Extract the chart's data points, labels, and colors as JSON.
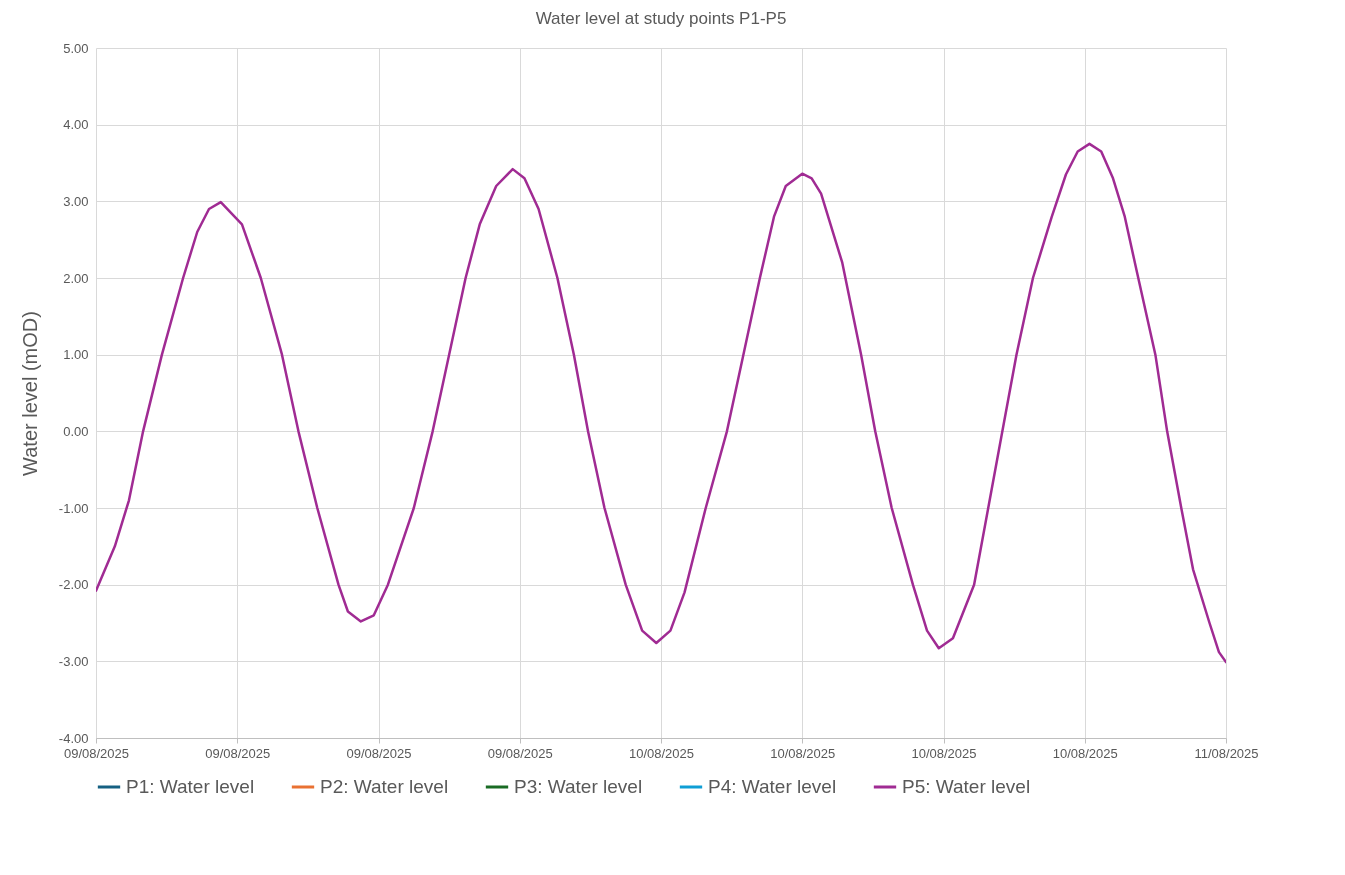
{
  "chart_data": {
    "type": "line",
    "title": "Water level at study points P1-P5",
    "ylabel": "Water level (mOD)",
    "x": [
      "2025-08-09T00:00",
      "2025-08-09T00:48",
      "2025-08-09T01:24",
      "2025-08-09T02:00",
      "2025-08-09T02:48",
      "2025-08-09T03:42",
      "2025-08-09T04:18",
      "2025-08-09T04:48",
      "2025-08-09T05:18",
      "2025-08-09T06:12",
      "2025-08-09T07:00",
      "2025-08-09T07:54",
      "2025-08-09T08:36",
      "2025-08-09T09:24",
      "2025-08-09T10:18",
      "2025-08-09T10:42",
      "2025-08-09T11:15",
      "2025-08-09T11:48",
      "2025-08-09T12:24",
      "2025-08-09T13:30",
      "2025-08-09T14:18",
      "2025-08-09T15:00",
      "2025-08-09T15:42",
      "2025-08-09T16:18",
      "2025-08-09T17:00",
      "2025-08-09T17:42",
      "2025-08-09T18:12",
      "2025-08-09T18:48",
      "2025-08-09T19:36",
      "2025-08-09T20:18",
      "2025-08-09T20:54",
      "2025-08-09T21:36",
      "2025-08-09T22:30",
      "2025-08-09T23:12",
      "2025-08-09T23:48",
      "2025-08-10T00:24",
      "2025-08-10T01:00",
      "2025-08-10T01:54",
      "2025-08-10T02:48",
      "2025-08-10T03:30",
      "2025-08-10T04:12",
      "2025-08-10T04:48",
      "2025-08-10T05:18",
      "2025-08-10T06:00",
      "2025-08-10T06:24",
      "2025-08-10T06:48",
      "2025-08-10T07:42",
      "2025-08-10T08:30",
      "2025-08-10T09:06",
      "2025-08-10T09:48",
      "2025-08-10T10:42",
      "2025-08-10T11:18",
      "2025-08-10T11:48",
      "2025-08-10T12:24",
      "2025-08-10T13:18",
      "2025-08-10T13:54",
      "2025-08-10T14:30",
      "2025-08-10T15:06",
      "2025-08-10T15:48",
      "2025-08-10T16:36",
      "2025-08-10T17:12",
      "2025-08-10T17:42",
      "2025-08-10T18:12",
      "2025-08-10T18:42",
      "2025-08-10T19:12",
      "2025-08-10T19:42",
      "2025-08-10T20:12",
      "2025-08-10T21:00",
      "2025-08-10T21:30",
      "2025-08-10T22:06",
      "2025-08-10T22:36",
      "2025-08-10T23:18",
      "2025-08-10T23:42",
      "2025-08-11T00:00"
    ],
    "series": [
      {
        "name": "P1: Water level",
        "color": "#156082",
        "values": [
          null,
          null,
          null,
          null,
          null,
          null,
          null,
          null,
          null,
          null,
          null,
          null,
          null,
          null,
          null,
          null,
          null,
          null,
          null,
          null,
          null,
          null,
          null,
          null,
          null,
          null,
          null,
          null,
          null,
          null,
          null,
          null,
          null,
          null,
          null,
          null,
          null,
          null,
          null,
          null,
          null,
          null,
          null,
          null,
          null,
          null,
          null,
          null,
          null,
          null,
          null,
          null,
          null,
          null,
          null,
          null,
          null,
          null,
          null,
          null,
          null,
          null,
          null,
          null,
          null,
          null,
          null,
          null,
          null,
          null,
          null,
          null,
          null,
          null
        ]
      },
      {
        "name": "P2: Water level",
        "color": "#e97132",
        "values": [
          null,
          null,
          null,
          null,
          null,
          null,
          null,
          null,
          null,
          null,
          null,
          null,
          null,
          null,
          null,
          null,
          null,
          null,
          null,
          null,
          null,
          null,
          null,
          null,
          null,
          null,
          null,
          null,
          null,
          null,
          null,
          null,
          null,
          null,
          null,
          null,
          null,
          null,
          null,
          null,
          null,
          null,
          null,
          null,
          null,
          null,
          null,
          null,
          null,
          null,
          null,
          null,
          null,
          null,
          null,
          null,
          null,
          null,
          null,
          null,
          null,
          null,
          null,
          null,
          null,
          null,
          null,
          null,
          null,
          null,
          null,
          null,
          null,
          null
        ]
      },
      {
        "name": "P3: Water level",
        "color": "#196b24",
        "values": [
          null,
          null,
          null,
          null,
          null,
          null,
          null,
          null,
          null,
          null,
          null,
          null,
          null,
          null,
          null,
          null,
          null,
          null,
          null,
          null,
          null,
          null,
          null,
          null,
          null,
          null,
          null,
          null,
          null,
          null,
          null,
          null,
          null,
          null,
          null,
          null,
          null,
          null,
          null,
          null,
          null,
          null,
          null,
          null,
          null,
          null,
          null,
          null,
          null,
          null,
          null,
          null,
          null,
          null,
          null,
          null,
          null,
          null,
          null,
          null,
          null,
          null,
          null,
          null,
          null,
          null,
          null,
          null,
          null,
          null,
          null,
          null,
          null,
          null
        ]
      },
      {
        "name": "P4: Water level",
        "color": "#0f9ed5",
        "values": [
          null,
          null,
          null,
          null,
          null,
          null,
          null,
          null,
          null,
          null,
          null,
          null,
          null,
          null,
          null,
          null,
          null,
          null,
          null,
          null,
          null,
          null,
          null,
          null,
          null,
          null,
          null,
          null,
          null,
          null,
          null,
          null,
          null,
          null,
          null,
          null,
          null,
          null,
          null,
          null,
          null,
          null,
          null,
          null,
          null,
          null,
          null,
          null,
          null,
          null,
          null,
          null,
          null,
          null,
          null,
          null,
          null,
          null,
          null,
          null,
          null,
          null,
          null,
          null,
          null,
          null,
          null,
          null,
          null,
          null,
          null,
          null,
          null,
          null
        ]
      },
      {
        "name": "P5: Water level",
        "color": "#a02b93",
        "values": [
          -2.08,
          -1.5,
          -0.9,
          0,
          1.0,
          2.0,
          2.6,
          2.9,
          2.99,
          2.7,
          2.0,
          1.0,
          0,
          -1.0,
          -2.0,
          -2.35,
          -2.48,
          -2.4,
          -2.0,
          -1.0,
          0,
          1.0,
          2.0,
          2.7,
          3.2,
          3.42,
          3.3,
          2.9,
          2.0,
          1.0,
          0,
          -1.0,
          -2.0,
          -2.6,
          -2.76,
          -2.6,
          -2.1,
          -1.0,
          0,
          1.0,
          2.0,
          2.8,
          3.2,
          3.36,
          3.3,
          3.1,
          2.2,
          1.0,
          0,
          -1.0,
          -2.0,
          -2.6,
          -2.83,
          -2.7,
          -2.0,
          -1.0,
          0,
          1.0,
          2.0,
          2.8,
          3.35,
          3.65,
          3.75,
          3.65,
          3.3,
          2.8,
          2.1,
          1.0,
          0,
          -1.0,
          -1.8,
          -2.5,
          -2.88,
          -3.01
        ]
      }
    ],
    "xlim": [
      "2025-08-09T00:00",
      "2025-08-11T00:00"
    ],
    "xticks": [
      {
        "value": "2025-08-09T00:00",
        "label": "09/08/2025"
      },
      {
        "value": "2025-08-09T06:00",
        "label": "09/08/2025"
      },
      {
        "value": "2025-08-09T12:00",
        "label": "09/08/2025"
      },
      {
        "value": "2025-08-09T18:00",
        "label": "09/08/2025"
      },
      {
        "value": "2025-08-10T00:00",
        "label": "10/08/2025"
      },
      {
        "value": "2025-08-10T06:00",
        "label": "10/08/2025"
      },
      {
        "value": "2025-08-10T12:00",
        "label": "10/08/2025"
      },
      {
        "value": "2025-08-10T18:00",
        "label": "10/08/2025"
      },
      {
        "value": "2025-08-11T00:00",
        "label": "11/08/2025"
      }
    ],
    "ylim": [
      -4,
      5
    ],
    "yticks": [
      {
        "value": -4,
        "label": "-4.00"
      },
      {
        "value": -3,
        "label": "-3.00"
      },
      {
        "value": -2,
        "label": "-2.00"
      },
      {
        "value": -1,
        "label": "-1.00"
      },
      {
        "value": 0,
        "label": "0.00"
      },
      {
        "value": 1,
        "label": "1.00"
      },
      {
        "value": 2,
        "label": "2.00"
      },
      {
        "value": 3,
        "label": "3.00"
      },
      {
        "value": 4,
        "label": "4.00"
      },
      {
        "value": 5,
        "label": "5.00"
      }
    ],
    "grid": true,
    "legend": "bottom"
  }
}
